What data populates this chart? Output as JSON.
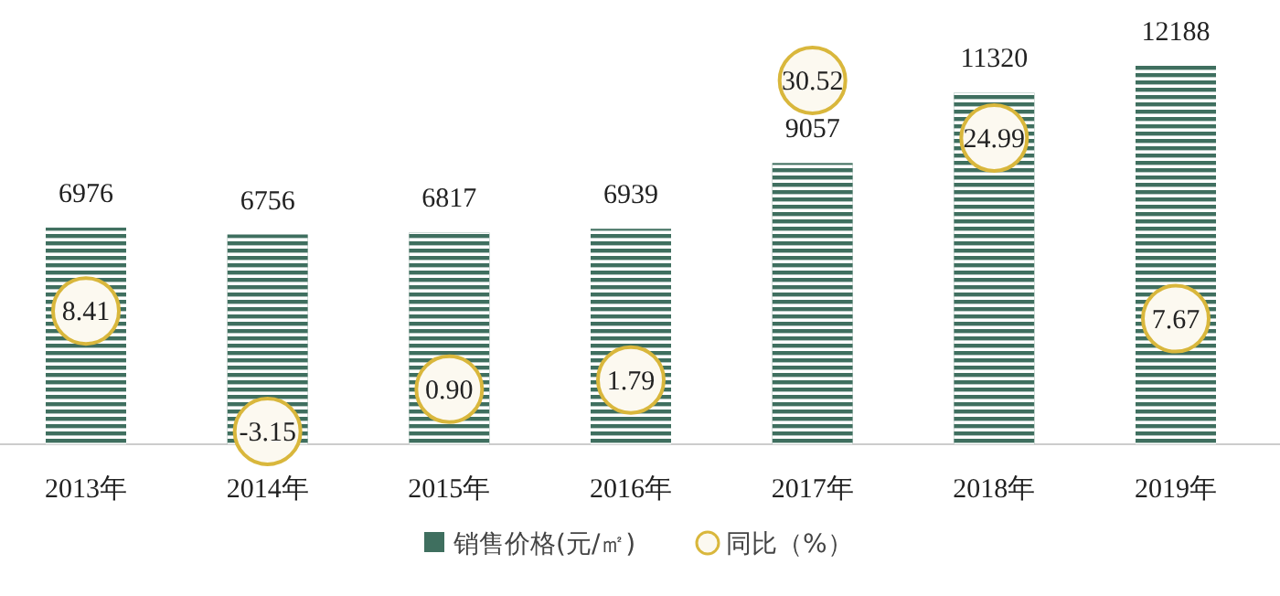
{
  "chart_data": {
    "type": "bar",
    "categories": [
      "2013年",
      "2014年",
      "2015年",
      "2016年",
      "2017年",
      "2018年",
      "2019年"
    ],
    "series": [
      {
        "name": "销售价格(元/㎡)",
        "color": "#3f6f5f",
        "values": [
          6976,
          6756,
          6817,
          6939,
          9057,
          11320,
          12188
        ],
        "value_labels": [
          "6976",
          "6756",
          "6817",
          "6939",
          "9057",
          "11320",
          "12188"
        ]
      },
      {
        "name": "同比（%）",
        "type": "scatter",
        "axis": "y2",
        "color": "#d9b73c",
        "values": [
          8.41,
          -3.15,
          0.9,
          1.79,
          30.52,
          24.99,
          7.67
        ],
        "value_labels": [
          "8.41",
          "-3.15",
          "0.90",
          "1.79",
          "30.52",
          "24.99",
          "7.67"
        ]
      }
    ],
    "tick_labels": "x",
    "legend": "bottom",
    "marker": "circle"
  }
}
